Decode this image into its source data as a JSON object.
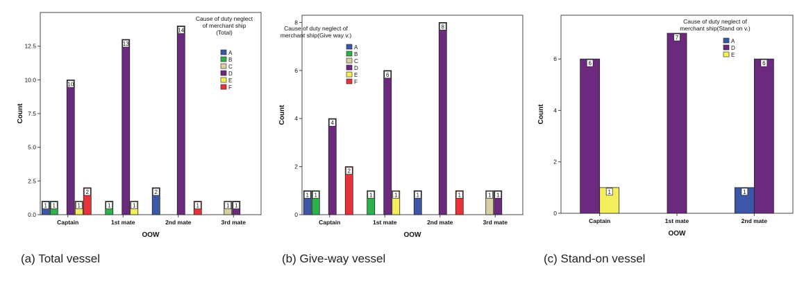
{
  "captions": {
    "a": "(a) Total vessel",
    "b": "(b) Give-way vessel",
    "c": "(c) Stand-on vessel"
  },
  "colors": {
    "A": "#3c56a8",
    "B": "#2bb24b",
    "C": "#d8cfa4",
    "D": "#6c2a7f",
    "E": "#f4ee5c",
    "F": "#e8323a"
  },
  "chart_data": [
    {
      "type": "bar",
      "xlabel": "OOW",
      "ylabel": "Count",
      "ylim": [
        0,
        15
      ],
      "yticks": [
        "0.0",
        "2.5",
        "5.0",
        "7.5",
        "10.0",
        "12.5"
      ],
      "ytick_values": [
        0,
        2.5,
        5,
        7.5,
        10,
        12.5
      ],
      "categories": [
        "Captain",
        "1st mate",
        "2nd mate",
        "3rd mate"
      ],
      "legend_title": [
        "Cause of duty neglect",
        "of merchant ship",
        "(Total)"
      ],
      "legend_keys": [
        "A",
        "B",
        "C",
        "D",
        "E",
        "F"
      ],
      "legend_position": "top-right",
      "series": [
        {
          "name": "A",
          "values": [
            1,
            0,
            2,
            0
          ]
        },
        {
          "name": "B",
          "values": [
            1,
            1,
            0,
            0
          ]
        },
        {
          "name": "C",
          "values": [
            0,
            0,
            0,
            1
          ]
        },
        {
          "name": "D",
          "values": [
            10,
            13,
            14,
            1
          ]
        },
        {
          "name": "E",
          "values": [
            1,
            1,
            0,
            0
          ]
        },
        {
          "name": "F",
          "values": [
            2,
            0,
            1,
            0
          ]
        }
      ]
    },
    {
      "type": "bar",
      "xlabel": "OOW",
      "ylabel": "Count",
      "ylim": [
        0,
        8.3
      ],
      "yticks": [
        "0",
        "2",
        "4",
        "6",
        "8"
      ],
      "ytick_values": [
        0,
        2,
        4,
        6,
        8
      ],
      "categories": [
        "Captain",
        "1st mate",
        "2nd mate",
        "3rd mate"
      ],
      "legend_title": [
        "Cause of duty neglect of",
        "merchant ship(Give way v.)"
      ],
      "legend_keys": [
        "A",
        "B",
        "C",
        "D",
        "E",
        "F"
      ],
      "legend_position": "top-left",
      "series": [
        {
          "name": "A",
          "values": [
            1,
            0,
            1,
            0
          ]
        },
        {
          "name": "B",
          "values": [
            1,
            1,
            0,
            0
          ]
        },
        {
          "name": "C",
          "values": [
            0,
            0,
            0,
            1
          ]
        },
        {
          "name": "D",
          "values": [
            4,
            6,
            8,
            1
          ]
        },
        {
          "name": "E",
          "values": [
            0,
            1,
            0,
            0
          ]
        },
        {
          "name": "F",
          "values": [
            2,
            0,
            1,
            0
          ]
        }
      ]
    },
    {
      "type": "bar",
      "xlabel": "OOW",
      "ylabel": "Count",
      "ylim": [
        0,
        7.7
      ],
      "yticks": [
        "0",
        "2",
        "4",
        "6"
      ],
      "ytick_values": [
        0,
        2,
        4,
        6
      ],
      "categories": [
        "Captain",
        "1st mate",
        "2nd mate"
      ],
      "legend_title": [
        "Cause of duty neglect of",
        "merchant ship(Stand on v.)"
      ],
      "legend_keys": [
        "A",
        "D",
        "E"
      ],
      "legend_position": "top-right",
      "series": [
        {
          "name": "A",
          "values": [
            0,
            0,
            1
          ]
        },
        {
          "name": "D",
          "values": [
            6,
            7,
            6
          ]
        },
        {
          "name": "E",
          "values": [
            1,
            0,
            0
          ]
        }
      ]
    }
  ]
}
